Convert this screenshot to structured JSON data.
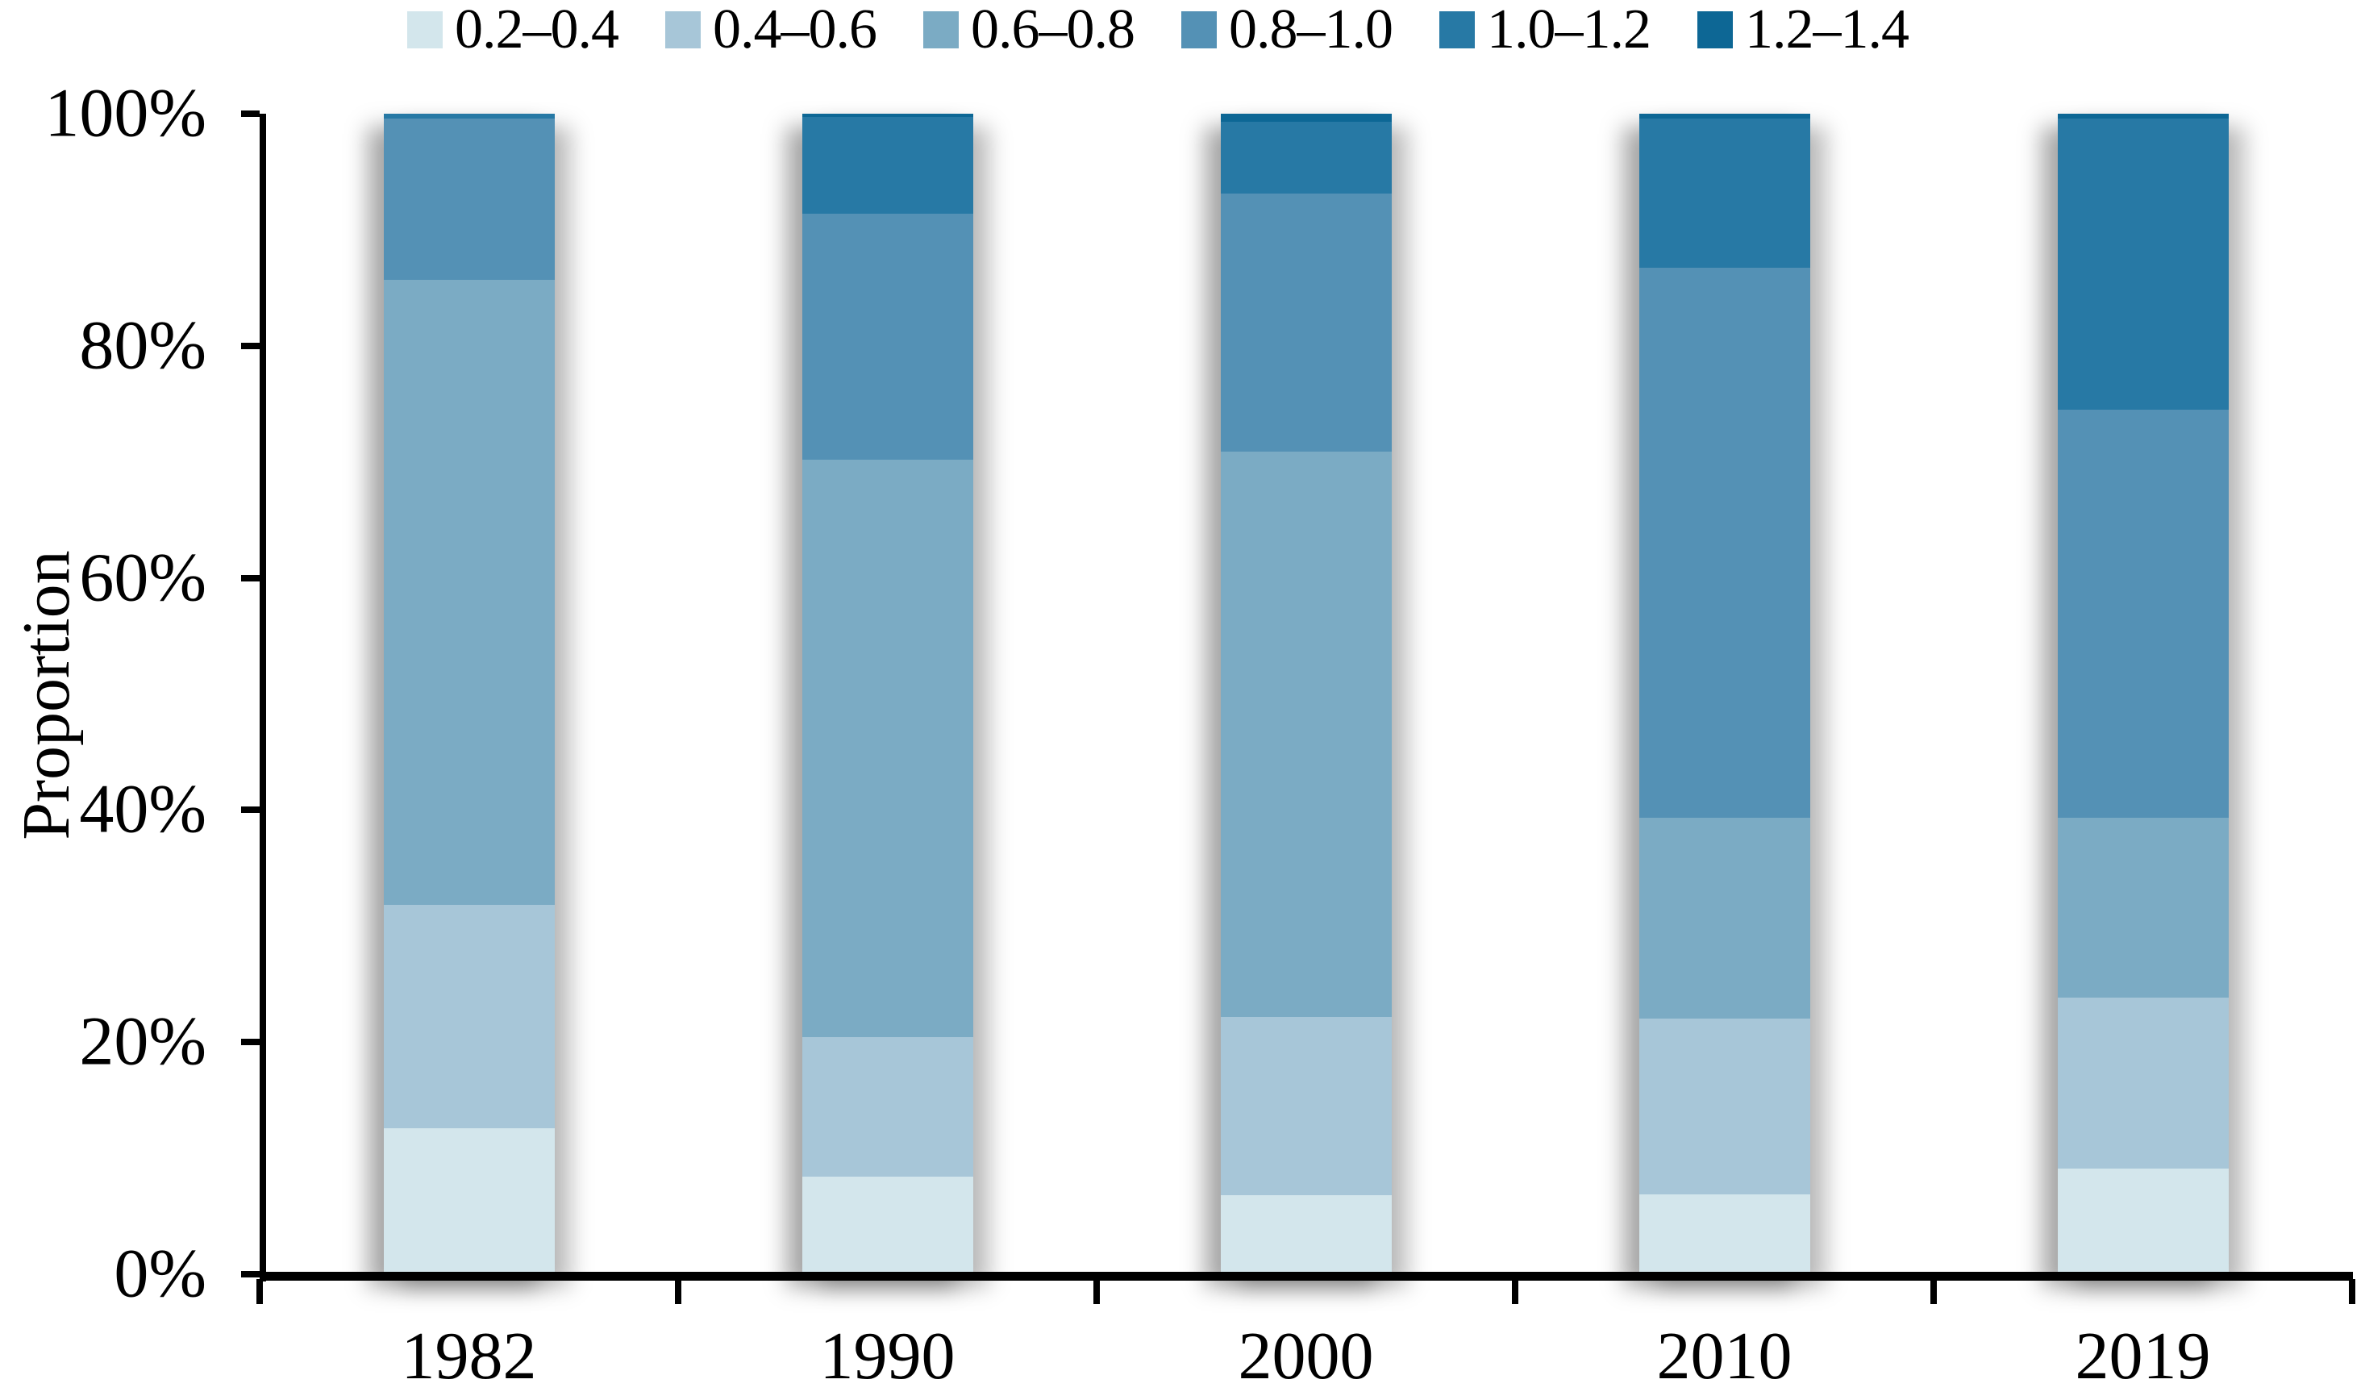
{
  "chart_data": {
    "type": "bar",
    "stacked": true,
    "title": "",
    "xlabel": "",
    "ylabel": "Proportion",
    "categories": [
      "1982",
      "1990",
      "2000",
      "2010",
      "2019"
    ],
    "series": [
      {
        "name": "0.2–0.4",
        "color": "#d3e6ec",
        "values": [
          12.6,
          8.4,
          6.8,
          6.9,
          9.1
        ]
      },
      {
        "name": "0.4–0.6",
        "color": "#a7c6d8",
        "values": [
          19.2,
          12.0,
          15.4,
          15.1,
          14.7
        ]
      },
      {
        "name": "0.6–0.8",
        "color": "#7babc4",
        "values": [
          53.9,
          49.8,
          48.7,
          17.3,
          15.5
        ]
      },
      {
        "name": "0.8–1.0",
        "color": "#5491b5",
        "values": [
          13.9,
          21.2,
          22.2,
          47.4,
          35.2
        ]
      },
      {
        "name": "1.0–1.2",
        "color": "#2779a5",
        "values": [
          0.4,
          8.3,
          6.2,
          12.9,
          25.1
        ]
      },
      {
        "name": "1.2–1.4",
        "color": "#0d6795",
        "values": [
          0.0,
          0.3,
          0.7,
          0.4,
          0.4
        ]
      }
    ],
    "ylim": [
      0,
      100
    ],
    "ytick_labels": [
      "0%",
      "20%",
      "40%",
      "60%",
      "80%",
      "100%"
    ],
    "legend_position": "top",
    "grid": false,
    "axis_color": "#000000",
    "background_color": "#ffffff"
  }
}
